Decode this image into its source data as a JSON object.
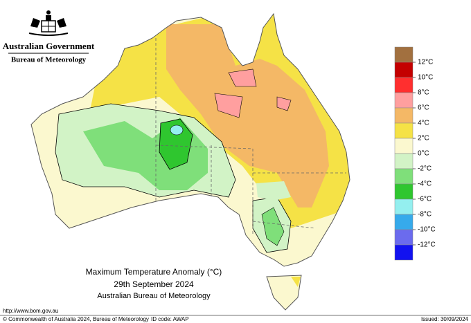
{
  "header": {
    "government": "Australian Government",
    "agency": "Bureau of Meteorology"
  },
  "map": {
    "title": "Maximum Temperature Anomaly (°C)",
    "date": "29th September 2024",
    "source": "Australian Bureau of Meteorology"
  },
  "legend": {
    "colors": [
      "#a2703f",
      "#c40000",
      "#ff2f2f",
      "#ff9f9f",
      "#f4b866",
      "#f5e246",
      "#fbf8cf",
      "#d2f3c6",
      "#7fdf7a",
      "#2fc62f",
      "#94efef",
      "#36aaeb",
      "#6b6bee",
      "#1212f0"
    ],
    "labels": [
      "12°C",
      "10°C",
      "8°C",
      "6°C",
      "4°C",
      "2°C",
      "0°C",
      "-2°C",
      "-4°C",
      "-6°C",
      "-8°C",
      "-10°C",
      "-12°C"
    ]
  },
  "footer": {
    "url": "http://www.bom.gov.au",
    "copyright": "© Commonwealth of Australia 2024, Bureau of Meteorology",
    "id_code": "ID code: AWAP",
    "issued": "Issued: 30/09/2024"
  }
}
